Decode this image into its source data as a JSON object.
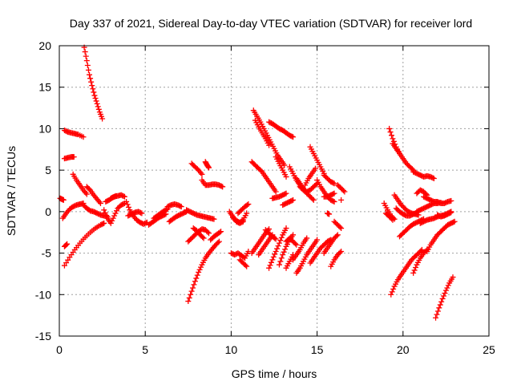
{
  "chart_data": {
    "type": "scatter",
    "title": "Day 337 of 2021, Sidereal Day-to-day VTEC variation (SDTVAR) for receiver lord",
    "xlabel": "GPS time / hours",
    "ylabel": "SDTVAR / TECUs",
    "xlim": [
      0,
      25
    ],
    "ylim": [
      -15,
      20
    ],
    "xticks": [
      "0",
      "5",
      "10",
      "15",
      "20",
      "25"
    ],
    "yticks": [
      "-15",
      "-10",
      "-5",
      "0",
      "5",
      "10",
      "15",
      "20"
    ],
    "grid": true,
    "marker": "plus",
    "color": "#ff0000",
    "series": [
      {
        "x": [
          1.45,
          1.6,
          1.75,
          1.9,
          2.05,
          2.2,
          2.35,
          2.5
        ],
        "y": [
          19.8,
          18.2,
          16.5,
          15.2,
          14.0,
          13.0,
          12.0,
          11.2
        ]
      },
      {
        "x": [
          0.3,
          0.5,
          0.7,
          0.9,
          1.1,
          1.4
        ],
        "y": [
          9.8,
          9.6,
          9.5,
          9.4,
          9.3,
          9.0
        ]
      },
      {
        "x": [
          0.3,
          0.5,
          0.7,
          0.85
        ],
        "y": [
          6.4,
          6.5,
          6.6,
          6.6
        ]
      },
      {
        "x": [
          0.8,
          1.0,
          1.2,
          1.4,
          1.6
        ],
        "y": [
          4.5,
          3.8,
          3.2,
          2.6,
          2.1
        ]
      },
      {
        "x": [
          1.6,
          1.8,
          2.0,
          2.2,
          2.4
        ],
        "y": [
          3.0,
          2.6,
          2.0,
          1.5,
          1.0
        ]
      },
      {
        "x": [
          0.05,
          0.15,
          0.25
        ],
        "y": [
          1.6,
          1.5,
          1.4
        ]
      },
      {
        "x": [
          0.2,
          0.4,
          0.6,
          0.8,
          1.0,
          1.2,
          1.4
        ],
        "y": [
          -0.8,
          -0.2,
          0.3,
          0.6,
          0.8,
          0.9,
          1.0
        ]
      },
      {
        "x": [
          0.3,
          0.45
        ],
        "y": [
          -4.2,
          -3.9
        ]
      },
      {
        "x": [
          0.3,
          0.6,
          0.9,
          1.2,
          1.5,
          1.8,
          2.1,
          2.4,
          2.6
        ],
        "y": [
          -6.5,
          -5.5,
          -4.6,
          -3.8,
          -3.1,
          -2.5,
          -2.0,
          -1.6,
          -1.4
        ]
      },
      {
        "x": [
          1.4,
          1.6,
          1.8,
          2.0,
          2.2,
          2.4,
          2.6,
          2.8
        ],
        "y": [
          0.8,
          0.4,
          0.1,
          0.0,
          -0.2,
          -0.4,
          -0.5,
          -0.6
        ]
      },
      {
        "x": [
          2.6,
          2.8,
          3.0,
          3.2,
          3.4,
          3.6,
          3.8
        ],
        "y": [
          0.2,
          -0.8,
          -1.4,
          -0.5,
          0.4,
          0.8,
          1.0
        ]
      },
      {
        "x": [
          3.0,
          3.2,
          3.4,
          3.6,
          3.8
        ],
        "y": [
          1.6,
          1.8,
          1.9,
          2.0,
          1.8
        ]
      },
      {
        "x": [
          2.7,
          2.9,
          3.1,
          3.3
        ],
        "y": [
          1.2,
          1.4,
          1.7,
          1.9
        ]
      },
      {
        "x": [
          3.9,
          4.1,
          4.3,
          4.5,
          4.7,
          4.9,
          5.1
        ],
        "y": [
          1.2,
          0.2,
          -0.5,
          -1.0,
          -1.3,
          -1.5,
          -1.3
        ]
      },
      {
        "x": [
          4.0,
          4.2,
          4.4,
          4.6,
          4.8
        ],
        "y": [
          -0.5,
          -0.3,
          -0.1,
          0.0,
          -0.2
        ]
      },
      {
        "x": [
          5.2,
          5.4,
          5.6,
          5.8,
          6.0,
          6.2
        ],
        "y": [
          -1.6,
          -1.3,
          -1.0,
          -0.7,
          -0.5,
          -0.3
        ]
      },
      {
        "x": [
          5.5,
          5.7,
          5.9,
          6.1,
          6.3
        ],
        "y": [
          -0.8,
          -0.5,
          -0.2,
          0.1,
          0.3
        ]
      },
      {
        "x": [
          6.3,
          6.5,
          6.7,
          6.9,
          7.1
        ],
        "y": [
          0.6,
          0.8,
          0.9,
          0.8,
          0.6
        ]
      },
      {
        "x": [
          6.4,
          6.6,
          6.8,
          7.0,
          7.2,
          7.4
        ],
        "y": [
          -1.2,
          -0.9,
          -0.6,
          -0.4,
          -0.2,
          0.0
        ]
      },
      {
        "x": [
          7.4,
          7.6,
          7.8,
          8.0,
          8.2,
          8.4,
          8.6,
          8.8,
          9.0
        ],
        "y": [
          0.2,
          0.0,
          -0.2,
          -0.4,
          -0.5,
          -0.6,
          -0.7,
          -0.8,
          -0.9
        ]
      },
      {
        "x": [
          7.7,
          7.9,
          8.1,
          8.3
        ],
        "y": [
          5.8,
          5.4,
          5.0,
          4.5
        ]
      },
      {
        "x": [
          8.3,
          8.5,
          8.7,
          8.9,
          9.1,
          9.3,
          9.5
        ],
        "y": [
          3.8,
          3.2,
          3.2,
          3.3,
          3.3,
          3.2,
          3.0
        ]
      },
      {
        "x": [
          8.5,
          8.6,
          8.7
        ],
        "y": [
          6.0,
          5.6,
          5.3
        ]
      },
      {
        "x": [
          7.5,
          7.7,
          7.9,
          8.1,
          8.3,
          8.5,
          8.7
        ],
        "y": [
          -3.6,
          -3.2,
          -2.8,
          -2.4,
          -2.1,
          -2.2,
          -2.6
        ]
      },
      {
        "x": [
          7.8,
          8.0,
          8.2,
          8.4
        ],
        "y": [
          -2.0,
          -2.3,
          -2.8,
          -3.2
        ]
      },
      {
        "x": [
          7.5,
          7.7,
          7.9,
          8.1,
          8.3,
          8.5,
          8.7,
          8.9,
          9.1,
          9.3
        ],
        "y": [
          -10.8,
          -9.6,
          -8.4,
          -7.3,
          -6.4,
          -5.6,
          -5.0,
          -4.5,
          -4.0,
          -3.6
        ]
      },
      {
        "x": [
          8.8,
          9.0,
          9.2,
          9.4
        ],
        "y": [
          -3.4,
          -3.0,
          -2.7,
          -2.4
        ]
      },
      {
        "x": [
          9.9,
          10.1,
          10.3,
          10.5,
          10.7,
          10.9
        ],
        "y": [
          0.0,
          -0.6,
          -1.1,
          -1.3,
          -1.0,
          -0.2
        ]
      },
      {
        "x": [
          10.1,
          10.3,
          10.5,
          10.7
        ],
        "y": [
          -0.7,
          -1.2,
          -1.4,
          -1.2
        ]
      },
      {
        "x": [
          10.4,
          10.6,
          10.8,
          11.0
        ],
        "y": [
          -0.2,
          0.2,
          0.6,
          0.9
        ]
      },
      {
        "x": [
          10.0,
          10.2,
          10.4,
          10.6,
          10.8,
          11.0
        ],
        "y": [
          -5.0,
          -5.2,
          -5.0,
          -5.3,
          -5.6,
          -4.8
        ]
      },
      {
        "x": [
          10.5,
          10.7,
          10.9
        ],
        "y": [
          -5.8,
          -6.2,
          -6.6
        ]
      },
      {
        "x": [
          11.2,
          11.4,
          11.6,
          11.8,
          12.0,
          12.2
        ],
        "y": [
          -5.0,
          -4.4,
          -3.8,
          -3.2,
          -2.6,
          -2.1
        ]
      },
      {
        "x": [
          11.6,
          11.8,
          12.0,
          12.2,
          12.4
        ],
        "y": [
          -5.2,
          -4.6,
          -4.0,
          -3.4,
          -2.8
        ]
      },
      {
        "x": [
          11.3,
          11.5,
          11.7,
          11.9,
          12.1,
          12.3,
          12.5,
          12.7,
          12.9,
          13.1
        ],
        "y": [
          12.2,
          11.5,
          10.8,
          10.0,
          9.2,
          8.4,
          7.6,
          6.8,
          6.2,
          5.6
        ]
      },
      {
        "x": [
          11.4,
          11.6,
          11.8,
          12.0,
          12.2
        ],
        "y": [
          11.0,
          10.2,
          9.5,
          8.8,
          8.0
        ]
      },
      {
        "x": [
          12.2,
          12.4,
          12.6,
          12.8,
          13.0,
          13.2,
          13.4,
          13.6
        ],
        "y": [
          10.8,
          10.6,
          10.3,
          10.0,
          9.8,
          9.5,
          9.2,
          9.0
        ]
      },
      {
        "x": [
          11.2,
          11.4,
          11.6,
          11.8,
          12.0,
          12.2,
          12.4,
          12.6
        ],
        "y": [
          6.0,
          5.6,
          5.2,
          4.8,
          4.2,
          3.6,
          3.0,
          2.4
        ]
      },
      {
        "x": [
          12.6,
          12.8,
          13.0,
          13.2
        ],
        "y": [
          6.6,
          5.8,
          5.0,
          4.2
        ]
      },
      {
        "x": [
          12.4,
          12.6,
          12.8,
          13.0,
          13.2
        ],
        "y": [
          1.6,
          1.7,
          1.8,
          2.0,
          2.2
        ]
      },
      {
        "x": [
          12.0,
          12.2,
          12.4,
          12.6
        ],
        "y": [
          -2.2,
          -2.6,
          -3.0,
          -3.3
        ]
      },
      {
        "x": [
          12.2,
          12.4,
          12.6,
          12.8,
          13.0,
          13.2
        ],
        "y": [
          -6.8,
          -5.8,
          -4.8,
          -3.8,
          -2.8,
          -2.0
        ]
      },
      {
        "x": [
          12.8,
          13.0,
          13.2,
          13.4,
          13.6
        ],
        "y": [
          -6.4,
          -5.2,
          -4.2,
          -3.4,
          -2.8
        ]
      },
      {
        "x": [
          13.2,
          13.4,
          13.6,
          13.8
        ],
        "y": [
          -3.6,
          -3.2,
          -3.6,
          -4.0
        ]
      },
      {
        "x": [
          13.4,
          13.6,
          13.8,
          14.0,
          14.2
        ],
        "y": [
          5.4,
          4.6,
          3.8,
          3.2,
          2.6
        ]
      },
      {
        "x": [
          13.8,
          14.0,
          14.2,
          14.4,
          14.6,
          14.8
        ],
        "y": [
          4.0,
          3.4,
          2.8,
          2.2,
          1.8,
          1.4
        ]
      },
      {
        "x": [
          14.0,
          14.2,
          14.4,
          14.6,
          14.8,
          15.0
        ],
        "y": [
          3.0,
          2.6,
          2.4,
          2.6,
          3.0,
          3.4
        ]
      },
      {
        "x": [
          13.0,
          13.2,
          13.4,
          13.6
        ],
        "y": [
          0.8,
          1.0,
          1.2,
          1.4
        ]
      },
      {
        "x": [
          14.3,
          14.5,
          14.7,
          14.9
        ],
        "y": [
          3.2,
          4.0,
          4.6,
          5.2
        ]
      },
      {
        "x": [
          14.6,
          14.8,
          15.0,
          15.2,
          15.4
        ],
        "y": [
          7.8,
          7.0,
          6.2,
          5.4,
          4.6
        ]
      },
      {
        "x": [
          15.0,
          15.2,
          15.4,
          15.6,
          15.8,
          16.0
        ],
        "y": [
          3.8,
          3.0,
          2.4,
          1.8,
          1.4,
          1.2
        ]
      },
      {
        "x": [
          15.4,
          15.6,
          15.8,
          16.0
        ],
        "y": [
          1.8,
          1.8,
          2.0,
          2.2
        ]
      },
      {
        "x": [
          15.4,
          15.6,
          15.8,
          16.0
        ],
        "y": [
          4.4,
          4.0,
          3.6,
          3.4
        ]
      },
      {
        "x": [
          16.2,
          16.4,
          16.6
        ],
        "y": [
          3.2,
          2.8,
          2.4
        ]
      },
      {
        "x": [
          15.6,
          15.7
        ],
        "y": [
          -0.2,
          -0.3
        ]
      },
      {
        "x": [
          16.4
        ],
        "y": [
          1.4
        ]
      },
      {
        "x": [
          13.8,
          14.0,
          14.2,
          14.4,
          14.6,
          14.8,
          15.0
        ],
        "y": [
          -7.4,
          -6.8,
          -6.0,
          -5.2,
          -4.6,
          -4.0,
          -3.4
        ]
      },
      {
        "x": [
          13.6,
          13.8,
          14.0,
          14.2,
          14.4
        ],
        "y": [
          -5.8,
          -5.2,
          -4.6,
          -3.8,
          -3.2
        ]
      },
      {
        "x": [
          13.2,
          13.4,
          13.6
        ],
        "y": [
          -6.8,
          -6.0,
          -5.2
        ]
      },
      {
        "x": [
          14.6,
          14.8,
          15.0,
          15.2,
          15.4,
          15.6,
          15.8
        ],
        "y": [
          -6.2,
          -5.6,
          -5.0,
          -4.4,
          -4.0,
          -3.6,
          -3.4
        ]
      },
      {
        "x": [
          15.4,
          15.6,
          15.8,
          16.0,
          16.2
        ],
        "y": [
          -5.0,
          -4.4,
          -3.8,
          -3.2,
          -2.8
        ]
      },
      {
        "x": [
          15.8,
          16.0,
          16.2,
          16.4
        ],
        "y": [
          -6.6,
          -5.8,
          -5.2,
          -4.8
        ]
      },
      {
        "x": [
          16.0,
          16.2,
          16.4
        ],
        "y": [
          -1.2,
          -1.6,
          -2.0
        ]
      },
      {
        "x": [
          19.2,
          19.4,
          19.6,
          19.8,
          20.0,
          20.2,
          20.4,
          20.6
        ],
        "y": [
          10.0,
          8.8,
          7.8,
          7.0,
          6.4,
          5.8,
          5.4,
          5.0
        ]
      },
      {
        "x": [
          19.4,
          19.6,
          19.8
        ],
        "y": [
          8.2,
          7.6,
          7.0
        ]
      },
      {
        "x": [
          20.6,
          20.8,
          21.0,
          21.2,
          21.4,
          21.6,
          21.8
        ],
        "y": [
          4.8,
          4.6,
          4.4,
          4.2,
          4.3,
          4.2,
          4.0
        ]
      },
      {
        "x": [
          20.8,
          21.0,
          21.2,
          21.4
        ],
        "y": [
          2.2,
          2.6,
          2.4,
          2.0
        ]
      },
      {
        "x": [
          18.9,
          19.1,
          19.3,
          19.5
        ],
        "y": [
          1.0,
          0.2,
          -0.5,
          -0.9
        ]
      },
      {
        "x": [
          19.0,
          19.2,
          19.4
        ],
        "y": [
          -0.2,
          -0.6,
          -1.0
        ]
      },
      {
        "x": [
          19.5,
          19.7,
          19.9,
          20.1,
          20.3,
          20.5,
          20.7,
          20.9
        ],
        "y": [
          2.0,
          1.4,
          0.8,
          0.4,
          0.0,
          -0.2,
          -0.3,
          -0.4
        ]
      },
      {
        "x": [
          19.6,
          19.8,
          20.0,
          20.2,
          20.4,
          20.6,
          20.8
        ],
        "y": [
          0.4,
          0.0,
          -0.3,
          -0.5,
          -0.5,
          -0.3,
          -0.1
        ]
      },
      {
        "x": [
          20.8,
          21.0,
          21.2,
          21.4,
          21.6,
          21.8,
          22.0,
          22.2
        ],
        "y": [
          0.0,
          0.2,
          0.4,
          0.6,
          0.8,
          1.0,
          1.0,
          1.1
        ]
      },
      {
        "x": [
          21.2,
          21.4,
          21.6,
          21.8,
          22.0,
          22.2,
          22.4,
          22.6,
          22.8
        ],
        "y": [
          1.8,
          1.6,
          1.4,
          1.2,
          1.2,
          1.0,
          1.0,
          1.2,
          1.3
        ]
      },
      {
        "x": [
          19.8,
          20.0,
          20.2,
          20.4,
          20.6,
          20.8,
          21.0,
          21.2
        ],
        "y": [
          -3.0,
          -2.6,
          -2.2,
          -1.8,
          -1.5,
          -1.3,
          -1.1,
          -0.9
        ]
      },
      {
        "x": [
          21.0,
          21.2,
          21.4,
          21.6,
          21.8,
          22.0,
          22.2,
          22.4,
          22.6,
          22.8
        ],
        "y": [
          -1.4,
          -1.2,
          -1.0,
          -0.9,
          -0.8,
          -0.6,
          -0.5,
          -0.4,
          -0.2,
          0.0
        ]
      },
      {
        "x": [
          22.0,
          22.2,
          22.4,
          22.6,
          22.8
        ],
        "y": [
          -0.4,
          -0.6,
          -0.5,
          -0.3,
          -0.1
        ]
      },
      {
        "x": [
          21.4,
          21.6,
          21.8,
          22.0,
          22.2,
          22.4,
          22.6,
          22.8,
          23.0
        ],
        "y": [
          -4.8,
          -4.0,
          -3.4,
          -2.8,
          -2.4,
          -2.0,
          -1.6,
          -1.4,
          -1.2
        ]
      },
      {
        "x": [
          19.3,
          19.5,
          19.7,
          19.9,
          20.1,
          20.3,
          20.5,
          20.7,
          20.9,
          21.1
        ],
        "y": [
          -10.0,
          -9.0,
          -8.2,
          -7.6,
          -7.0,
          -6.4,
          -5.8,
          -5.4,
          -5.0,
          -4.6
        ]
      },
      {
        "x": [
          20.6,
          20.8,
          21.0,
          21.2,
          21.4
        ],
        "y": [
          -7.4,
          -6.4,
          -5.6,
          -5.0,
          -4.6
        ]
      },
      {
        "x": [
          21.9,
          22.1,
          22.3,
          22.5,
          22.7,
          22.9
        ],
        "y": [
          -12.8,
          -11.6,
          -10.5,
          -9.5,
          -8.6,
          -7.9
        ]
      }
    ]
  }
}
